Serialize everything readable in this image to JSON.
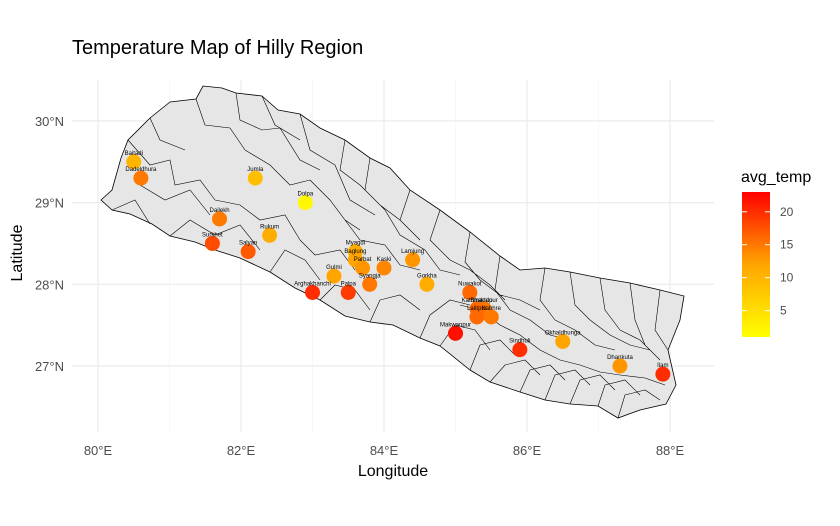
{
  "chart_data": {
    "type": "map",
    "title": "Temperature Map of Hilly Region",
    "xlabel": "Longitude",
    "ylabel": "Latitude",
    "x_ticks": [
      {
        "value": 80,
        "label": "80°E"
      },
      {
        "value": 82,
        "label": "82°E"
      },
      {
        "value": 84,
        "label": "84°E"
      },
      {
        "value": 86,
        "label": "86°E"
      },
      {
        "value": 88,
        "label": "88°E"
      }
    ],
    "y_ticks": [
      {
        "value": 27,
        "label": "27°N"
      },
      {
        "value": 28,
        "label": "28°N"
      },
      {
        "value": 29,
        "label": "29°N"
      },
      {
        "value": 30,
        "label": "30°N"
      }
    ],
    "grid": true,
    "legend": {
      "title": "avg_temp",
      "placement": "right",
      "min": 1,
      "max": 23,
      "ticks": [
        5,
        10,
        15,
        20
      ],
      "colors": [
        "#ffff00",
        "#ffa500",
        "#ff0000"
      ]
    },
    "points": [
      {
        "name": "Baitadi",
        "lon": 80.5,
        "lat": 29.5,
        "avg_temp": 10
      },
      {
        "name": "Dadeldhura",
        "lon": 80.6,
        "lat": 29.3,
        "avg_temp": 15
      },
      {
        "name": "Jumla",
        "lon": 82.2,
        "lat": 29.3,
        "avg_temp": 9
      },
      {
        "name": "Dolpa",
        "lon": 82.9,
        "lat": 29.0,
        "avg_temp": 2
      },
      {
        "name": "Dailekh",
        "lon": 81.7,
        "lat": 28.8,
        "avg_temp": 15
      },
      {
        "name": "Rukum",
        "lon": 82.4,
        "lat": 28.6,
        "avg_temp": 11
      },
      {
        "name": "Surkhet",
        "lon": 81.6,
        "lat": 28.5,
        "avg_temp": 18
      },
      {
        "name": "Salyan",
        "lon": 82.1,
        "lat": 28.4,
        "avg_temp": 17
      },
      {
        "name": "Myagdi",
        "lon": 83.6,
        "lat": 28.4,
        "avg_temp": 11
      },
      {
        "name": "Baglung",
        "lon": 83.6,
        "lat": 28.3,
        "avg_temp": 12
      },
      {
        "name": "Parbat",
        "lon": 83.7,
        "lat": 28.2,
        "avg_temp": 13
      },
      {
        "name": "Kaski",
        "lon": 84.0,
        "lat": 28.2,
        "avg_temp": 14
      },
      {
        "name": "Lamjung",
        "lon": 84.4,
        "lat": 28.3,
        "avg_temp": 13
      },
      {
        "name": "Gulmi",
        "lon": 83.3,
        "lat": 28.1,
        "avg_temp": 12
      },
      {
        "name": "Syangja",
        "lon": 83.8,
        "lat": 28.0,
        "avg_temp": 15
      },
      {
        "name": "Gorkha",
        "lon": 84.6,
        "lat": 28.0,
        "avg_temp": 11
      },
      {
        "name": "Arghakhanchi",
        "lon": 83.0,
        "lat": 27.9,
        "avg_temp": 20
      },
      {
        "name": "Palpa",
        "lon": 83.5,
        "lat": 27.9,
        "avg_temp": 19
      },
      {
        "name": "Nuwakot",
        "lon": 85.2,
        "lat": 27.9,
        "avg_temp": 16
      },
      {
        "name": "Bhaktapur",
        "lon": 85.4,
        "lat": 27.7,
        "avg_temp": 15
      },
      {
        "name": "Kathmandu",
        "lon": 85.3,
        "lat": 27.7,
        "avg_temp": 16
      },
      {
        "name": "Lalitpur",
        "lon": 85.3,
        "lat": 27.6,
        "avg_temp": 16
      },
      {
        "name": "Kabhre",
        "lon": 85.5,
        "lat": 27.6,
        "avg_temp": 15
      },
      {
        "name": "Makwanpur",
        "lon": 85.0,
        "lat": 27.4,
        "avg_temp": 22
      },
      {
        "name": "Sindhuli",
        "lon": 85.9,
        "lat": 27.2,
        "avg_temp": 20
      },
      {
        "name": "Okhaldhunga",
        "lon": 86.5,
        "lat": 27.3,
        "avg_temp": 12
      },
      {
        "name": "Dhankuta",
        "lon": 87.3,
        "lat": 27.0,
        "avg_temp": 13
      },
      {
        "name": "Ilam",
        "lon": 87.9,
        "lat": 26.9,
        "avg_temp": 20
      }
    ]
  }
}
